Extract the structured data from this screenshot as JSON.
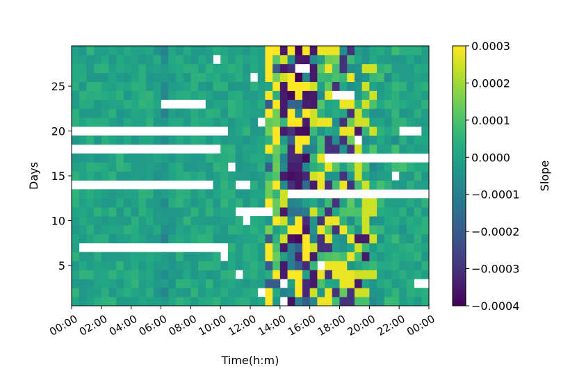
{
  "chart_data": {
    "type": "heatmap",
    "xlabel": "Time(h:m)",
    "ylabel": "Days",
    "x_tick_labels": [
      "00:00",
      "02:00",
      "04:00",
      "06:00",
      "08:00",
      "10:00",
      "12:00",
      "14:00",
      "16:00",
      "18:00",
      "20:00",
      "22:00",
      "00:00"
    ],
    "y_ticks": [
      5,
      10,
      15,
      20,
      25
    ],
    "y_range": [
      0.5,
      29.5
    ],
    "n_days": 29,
    "n_slots": 48,
    "slot_minutes": 30,
    "colorbar": {
      "label": "Slope",
      "min": -0.0004,
      "max": 0.0003,
      "tick_values": [
        0.0003,
        0.0002,
        0.0001,
        0.0,
        -0.0001,
        -0.0002,
        -0.0003,
        -0.0004
      ],
      "tick_labels": [
        "0.0003",
        "0.0002",
        "0.0001",
        "0.0000",
        "−0.0001",
        "−0.0002",
        "−0.0003",
        "−0.0004"
      ],
      "colormap": "viridis"
    },
    "grid": false,
    "missing_data_color": "#ffffff",
    "missing_segments": [
      {
        "day": 20,
        "from_slot": 0,
        "to_slot": 20
      },
      {
        "day": 18,
        "from_slot": 0,
        "to_slot": 19
      },
      {
        "day": 14,
        "from_slot": 0,
        "to_slot": 18
      },
      {
        "day": 7,
        "from_slot": 1,
        "to_slot": 20
      },
      {
        "day": 23,
        "from_slot": 12,
        "to_slot": 17
      },
      {
        "day": 17,
        "from_slot": 34,
        "to_slot": 47
      },
      {
        "day": 13,
        "from_slot": 29,
        "to_slot": 47
      },
      {
        "day": 11,
        "from_slot": 22,
        "to_slot": 26
      },
      {
        "day": 3,
        "from_slot": 46,
        "to_slot": 47
      },
      {
        "day": 20,
        "from_slot": 44,
        "to_slot": 46
      },
      {
        "day": 24,
        "from_slot": 35,
        "to_slot": 37
      },
      {
        "day": 27,
        "from_slot": 30,
        "to_slot": 31
      },
      {
        "day": 28,
        "from_slot": 19,
        "to_slot": 19
      },
      {
        "day": 26,
        "from_slot": 24,
        "to_slot": 24
      },
      {
        "day": 16,
        "from_slot": 21,
        "to_slot": 21
      },
      {
        "day": 14,
        "from_slot": 22,
        "to_slot": 23
      },
      {
        "day": 10,
        "from_slot": 23,
        "to_slot": 23
      },
      {
        "day": 6,
        "from_slot": 20,
        "to_slot": 20
      },
      {
        "day": 5,
        "from_slot": 33,
        "to_slot": 33
      },
      {
        "day": 4,
        "from_slot": 22,
        "to_slot": 22
      },
      {
        "day": 3,
        "from_slot": 28,
        "to_slot": 28
      },
      {
        "day": 2,
        "from_slot": 25,
        "to_slot": 25
      },
      {
        "day": 1,
        "from_slot": 28,
        "to_slot": 28
      },
      {
        "day": 19,
        "from_slot": 38,
        "to_slot": 38
      },
      {
        "day": 15,
        "from_slot": 43,
        "to_slot": 43
      },
      {
        "day": 21,
        "from_slot": 25,
        "to_slot": 25
      }
    ],
    "value_pattern": "Most cells near 0 (range about -0.0001 to 0.0001); a darker column around 06:00; strong negative values (about -0.0004) concentrated around 14:00-16:30 and near 19:00-20:00, strong positive values (up to 0.0003) around 13:30-14:00 and 17:00-20:00."
  }
}
